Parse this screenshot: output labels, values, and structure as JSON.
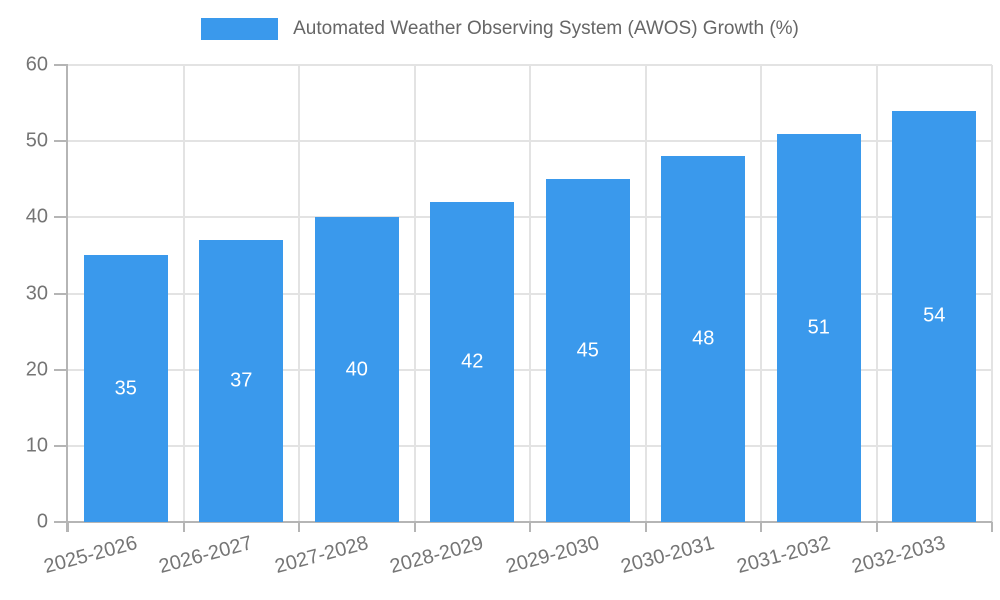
{
  "legend": {
    "label": "Automated Weather Observing System (AWOS) Growth (%)"
  },
  "colors": {
    "bar": "#3a99ec",
    "grid_line": "#e3e3e3",
    "axis_line": "#b5b5b5",
    "axis_text": "#757575",
    "legend_text": "#666666",
    "bar_value_text": "#ffffff",
    "background": "#ffffff"
  },
  "chart_data": {
    "type": "bar",
    "title": "Automated Weather Observing System (AWOS) Growth (%)",
    "categories": [
      "2025-2026",
      "2026-2027",
      "2027-2028",
      "2028-2029",
      "2029-2030",
      "2030-2031",
      "2031-2032",
      "2032-2033"
    ],
    "values": [
      35,
      37,
      40,
      42,
      45,
      48,
      51,
      54
    ],
    "xlabel": "",
    "ylabel": "",
    "ylim": [
      0,
      60
    ],
    "yticks": [
      0,
      10,
      20,
      30,
      40,
      50,
      60
    ],
    "grid": true,
    "legend_position": "top-center",
    "bar_value_labels": "inside-middle",
    "x_tick_rotation_deg": -15
  }
}
